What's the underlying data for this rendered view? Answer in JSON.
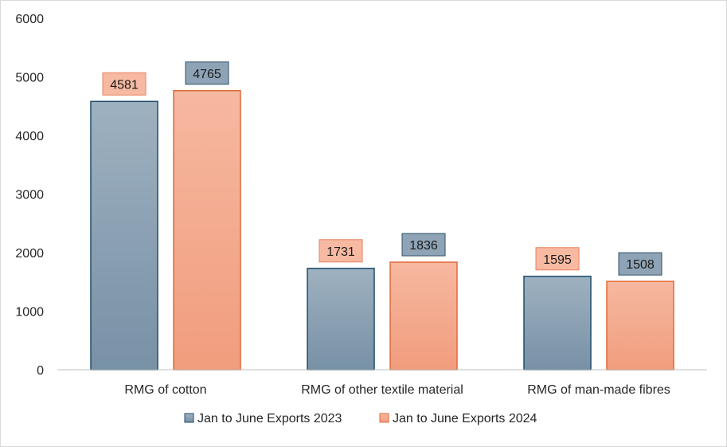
{
  "chart_data": {
    "type": "bar",
    "categories": [
      "RMG of cotton",
      "RMG of other textile material",
      "RMG of man-made fibres"
    ],
    "series": [
      {
        "name": "Jan to June Exports 2023",
        "values": [
          4581,
          1731,
          1595
        ],
        "color": "#8a9fb0",
        "border": "#1f4e6b"
      },
      {
        "name": "Jan to June Exports 2024",
        "values": [
          4765,
          1836,
          1508
        ],
        "color": "#f4a98c",
        "border": "#e06a3a"
      }
    ],
    "data_labels": [
      [
        "4581",
        "1731",
        "1595"
      ],
      [
        "4765",
        "1836",
        "1508"
      ]
    ],
    "data_label_styles": [
      [
        "salmon",
        "salmon",
        "salmon"
      ],
      [
        "slate",
        "slate",
        "slate"
      ]
    ],
    "y_ticks": [
      "0",
      "1000",
      "2000",
      "3000",
      "4000",
      "5000",
      "6000"
    ],
    "ylim": [
      0,
      6000
    ],
    "grid": false,
    "legend_position": "bottom"
  }
}
